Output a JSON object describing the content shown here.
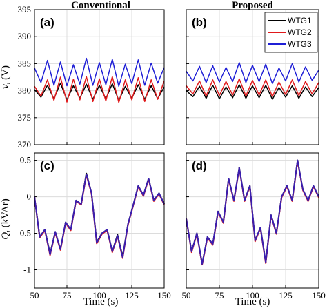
{
  "column_titles": [
    "Conventional",
    "Proposed"
  ],
  "ylabel_top": "v_i (V)",
  "ylabel_bottom": "Q_i (kVAr)",
  "xlabel": "Time (s)",
  "legend": [
    "WTG1",
    "WTG2",
    "WTG3"
  ],
  "colors": {
    "WTG1": "#000000",
    "WTG2": "#e0191b",
    "WTG3": "#1f1fd6",
    "overlay": "#3a1fb0"
  },
  "chart_data": [
    {
      "panel": "(a)",
      "type": "line",
      "x": [
        50,
        55,
        60,
        65,
        70,
        75,
        80,
        85,
        90,
        95,
        100,
        105,
        110,
        115,
        120,
        125,
        130,
        135,
        140,
        145,
        150
      ],
      "xlim": [
        50,
        150
      ],
      "ylim": [
        370,
        395
      ],
      "xticks": [
        50,
        75,
        100,
        125,
        150
      ],
      "yticks": [
        370,
        375,
        380,
        385,
        390,
        395
      ],
      "grid": true,
      "series": [
        {
          "name": "WTG1",
          "values": [
            380.2,
            378.8,
            381.0,
            378.5,
            381.4,
            378.3,
            380.9,
            378.6,
            381.2,
            378.4,
            381.0,
            378.5,
            381.3,
            378.2,
            380.8,
            378.6,
            381.1,
            378.4,
            380.9,
            378.5,
            380.7
          ]
        },
        {
          "name": "WTG2",
          "values": [
            380.8,
            379.0,
            382.0,
            378.2,
            382.5,
            377.9,
            382.1,
            378.3,
            382.6,
            378.0,
            382.2,
            378.1,
            382.6,
            377.8,
            382.0,
            378.3,
            382.4,
            378.0,
            382.0,
            378.4,
            381.8
          ]
        },
        {
          "name": "WTG3",
          "values": [
            384.2,
            381.5,
            385.6,
            381.0,
            385.3,
            380.9,
            384.8,
            381.2,
            386.0,
            381.0,
            385.2,
            381.1,
            385.8,
            380.8,
            384.9,
            381.3,
            385.7,
            381.0,
            385.1,
            381.4,
            384.3
          ]
        }
      ]
    },
    {
      "panel": "(b)",
      "type": "line",
      "x": [
        50,
        55,
        60,
        65,
        70,
        75,
        80,
        85,
        90,
        95,
        100,
        105,
        110,
        115,
        120,
        125,
        130,
        135,
        140,
        145,
        150
      ],
      "xlim": [
        50,
        150
      ],
      "ylim": [
        370,
        395
      ],
      "xticks": [
        50,
        75,
        100,
        125,
        150
      ],
      "yticks": [
        370,
        375,
        380,
        385,
        390,
        395
      ],
      "grid": true,
      "legend_position": "top-right",
      "series": [
        {
          "name": "WTG1",
          "values": [
            380.0,
            378.9,
            380.8,
            378.6,
            381.0,
            378.5,
            380.7,
            378.7,
            381.1,
            378.6,
            380.9,
            378.7,
            381.0,
            378.4,
            380.6,
            378.8,
            380.9,
            378.6,
            380.7,
            378.9,
            380.6
          ]
        },
        {
          "name": "WTG2",
          "values": [
            380.9,
            379.4,
            381.8,
            379.0,
            382.0,
            379.1,
            381.7,
            379.2,
            382.2,
            379.0,
            381.9,
            379.2,
            382.0,
            378.9,
            381.6,
            379.3,
            382.0,
            379.1,
            381.7,
            379.4,
            381.5
          ]
        },
        {
          "name": "WTG3",
          "values": [
            383.6,
            381.8,
            384.5,
            381.5,
            384.6,
            381.6,
            384.3,
            381.7,
            385.2,
            381.5,
            384.7,
            381.7,
            384.9,
            381.3,
            384.2,
            381.8,
            385.0,
            381.6,
            384.4,
            381.9,
            383.8
          ]
        }
      ]
    },
    {
      "panel": "(c)",
      "type": "line",
      "x": [
        50,
        54,
        58,
        62,
        66,
        70,
        74,
        78,
        82,
        86,
        90,
        94,
        98,
        102,
        106,
        110,
        114,
        118,
        122,
        126,
        130,
        134,
        138,
        142,
        146,
        150
      ],
      "xlim": [
        50,
        150
      ],
      "ylim": [
        -1.25,
        0.6
      ],
      "xticks": [
        50,
        75,
        100,
        125,
        150
      ],
      "yticks": [
        -1,
        -0.5,
        0,
        0.5
      ],
      "grid": true,
      "series": [
        {
          "name": "WTG1",
          "values": [
            0.0,
            -0.55,
            -0.45,
            -0.78,
            -0.48,
            -0.72,
            -0.35,
            -0.45,
            -0.05,
            -0.1,
            0.32,
            0.05,
            -0.62,
            -0.5,
            -0.45,
            -0.75,
            -0.52,
            -0.82,
            -0.38,
            -0.12,
            0.15,
            0.02,
            0.25,
            -0.05,
            0.05,
            -0.1
          ]
        },
        {
          "name": "WTG2",
          "values": [
            0.0,
            -0.56,
            -0.46,
            -0.8,
            -0.49,
            -0.73,
            -0.36,
            -0.46,
            -0.06,
            -0.11,
            0.3,
            0.04,
            -0.64,
            -0.51,
            -0.46,
            -0.76,
            -0.54,
            -0.84,
            -0.39,
            -0.13,
            0.14,
            0.01,
            0.24,
            -0.06,
            0.04,
            -0.11
          ]
        },
        {
          "name": "WTG3",
          "values": [
            0.0,
            -0.55,
            -0.45,
            -0.79,
            -0.48,
            -0.72,
            -0.35,
            -0.45,
            -0.05,
            -0.1,
            0.31,
            0.05,
            -0.63,
            -0.5,
            -0.45,
            -0.75,
            -0.53,
            -0.83,
            -0.38,
            -0.12,
            0.15,
            0.02,
            0.25,
            -0.05,
            0.05,
            -0.1
          ]
        }
      ]
    },
    {
      "panel": "(d)",
      "type": "line",
      "x": [
        50,
        54,
        58,
        62,
        66,
        70,
        74,
        78,
        82,
        86,
        90,
        94,
        98,
        102,
        106,
        110,
        114,
        118,
        122,
        126,
        130,
        134,
        138,
        142,
        146,
        150
      ],
      "xlim": [
        50,
        150
      ],
      "ylim": [
        -1.25,
        0.6
      ],
      "xticks": [
        50,
        75,
        100,
        125,
        150
      ],
      "yticks": [
        -1,
        -0.5,
        0,
        0.5
      ],
      "grid": true,
      "series": [
        {
          "name": "WTG1",
          "values": [
            -0.3,
            -0.75,
            -0.5,
            -0.92,
            -0.55,
            -0.65,
            -0.2,
            -0.35,
            0.25,
            -0.05,
            0.4,
            -0.05,
            0.15,
            -0.6,
            -0.42,
            -0.9,
            -0.25,
            -0.5,
            0.0,
            0.15,
            -0.05,
            0.5,
            0.1,
            -0.05,
            0.15,
            0.0
          ]
        },
        {
          "name": "WTG2",
          "values": [
            -0.3,
            -0.76,
            -0.51,
            -0.93,
            -0.56,
            -0.66,
            -0.21,
            -0.36,
            0.24,
            -0.06,
            0.39,
            -0.06,
            0.14,
            -0.61,
            -0.43,
            -0.91,
            -0.26,
            -0.51,
            -0.01,
            0.14,
            -0.06,
            0.49,
            0.09,
            -0.06,
            0.14,
            -0.01
          ]
        },
        {
          "name": "WTG3",
          "values": [
            -0.3,
            -0.75,
            -0.5,
            -0.92,
            -0.55,
            -0.65,
            -0.2,
            -0.35,
            0.25,
            -0.05,
            0.4,
            -0.05,
            0.15,
            -0.6,
            -0.42,
            -0.9,
            -0.25,
            -0.5,
            0.0,
            0.15,
            -0.05,
            0.5,
            0.1,
            -0.05,
            0.15,
            0.0
          ]
        }
      ]
    }
  ]
}
